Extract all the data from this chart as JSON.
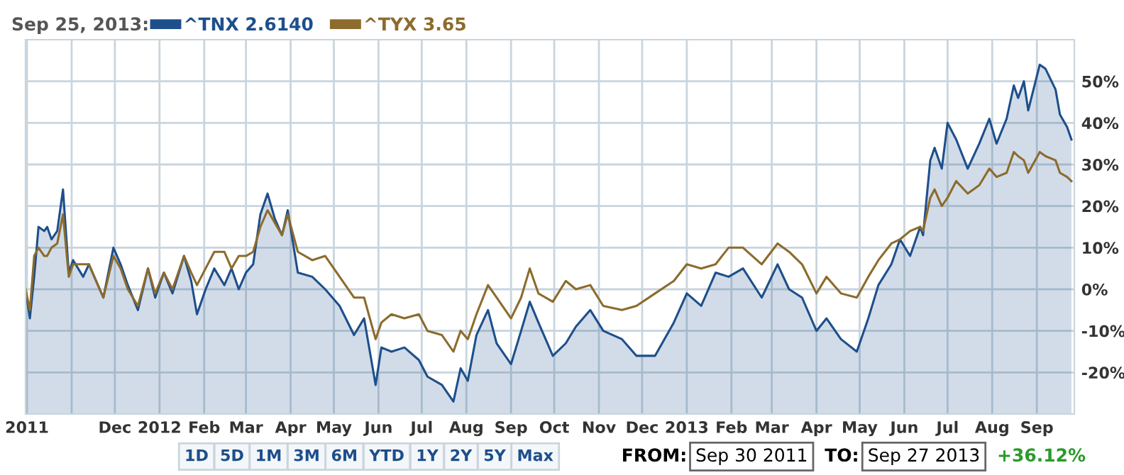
{
  "chart_data": {
    "type": "area",
    "legend_title": "Sep 25, 2013:",
    "x": [
      "2011-09-30",
      "2011-10-03",
      "2011-10-06",
      "2011-10-09",
      "2011-10-13",
      "2011-10-15",
      "2011-10-18",
      "2011-10-22",
      "2011-10-26",
      "2011-10-30",
      "2011-11-02",
      "2011-11-09",
      "2011-11-13",
      "2011-11-23",
      "2011-11-30",
      "2011-12-05",
      "2011-12-10",
      "2011-12-17",
      "2011-12-24",
      "2011-12-29",
      "2012-01-04",
      "2012-01-10",
      "2012-01-18",
      "2012-01-23",
      "2012-01-27",
      "2012-02-02",
      "2012-02-08",
      "2012-02-15",
      "2012-02-20",
      "2012-02-25",
      "2012-03-01",
      "2012-03-06",
      "2012-03-11",
      "2012-03-16",
      "2012-03-21",
      "2012-03-26",
      "2012-03-30",
      "2012-04-06",
      "2012-04-16",
      "2012-04-25",
      "2012-05-05",
      "2012-05-15",
      "2012-05-22",
      "2012-05-30",
      "2012-06-03",
      "2012-06-10",
      "2012-06-19",
      "2012-06-29",
      "2012-07-05",
      "2012-07-15",
      "2012-07-23",
      "2012-07-28",
      "2012-08-02",
      "2012-08-08",
      "2012-08-16",
      "2012-08-22",
      "2012-09-01",
      "2012-09-08",
      "2012-09-14",
      "2012-09-20",
      "2012-09-30",
      "2012-10-09",
      "2012-10-16",
      "2012-10-26",
      "2012-11-04",
      "2012-11-17",
      "2012-11-27",
      "2012-12-10",
      "2012-12-23",
      "2013-01-01",
      "2013-01-11",
      "2013-01-21",
      "2013-01-30",
      "2013-02-09",
      "2013-02-22",
      "2013-03-05",
      "2013-03-13",
      "2013-03-22",
      "2013-04-01",
      "2013-04-08",
      "2013-04-18",
      "2013-04-29",
      "2013-05-07",
      "2013-05-14",
      "2013-05-23",
      "2013-05-29",
      "2013-06-05",
      "2013-06-12",
      "2013-06-14",
      "2013-06-19",
      "2013-06-22",
      "2013-06-27",
      "2013-07-01",
      "2013-07-07",
      "2013-07-15",
      "2013-07-23",
      "2013-07-30",
      "2013-08-04",
      "2013-08-11",
      "2013-08-16",
      "2013-08-19",
      "2013-08-23",
      "2013-08-26",
      "2013-09-03",
      "2013-09-07",
      "2013-09-14",
      "2013-09-17",
      "2013-09-22",
      "2013-09-25"
    ],
    "series": [
      {
        "name": "^TNX 2.6140",
        "color": "#1d4f8b",
        "values": [
          0,
          -7,
          3,
          15,
          14,
          15,
          12,
          14,
          24,
          4,
          7,
          3,
          6,
          -2,
          10,
          6,
          1,
          -5,
          5,
          -2,
          4,
          -1,
          8,
          2,
          -6,
          0,
          5,
          1,
          5,
          0,
          4,
          6,
          18,
          23,
          17,
          13,
          19,
          4,
          3,
          0,
          -4,
          -11,
          -7,
          -23,
          -14,
          -15,
          -14,
          -17,
          -21,
          -23,
          -27,
          -19,
          -22,
          -11,
          -5,
          -13,
          -18,
          -10,
          -3,
          -8,
          -16,
          -13,
          -9,
          -5,
          -10,
          -12,
          -16,
          -16,
          -8,
          -1,
          -4,
          4,
          3,
          5,
          -2,
          6,
          0,
          -2,
          -10,
          -7,
          -12,
          -15,
          -7,
          1,
          6,
          12,
          8,
          15,
          13,
          31,
          34,
          29,
          40,
          36,
          29,
          35,
          41,
          35,
          41,
          49,
          46,
          50,
          43,
          54,
          53,
          48,
          42,
          39,
          36
        ]
      },
      {
        "name": "^TYX 3.65",
        "type": "line",
        "color": "#8c6b2c",
        "values": [
          0,
          -5,
          8,
          10,
          8,
          8,
          10,
          11,
          18,
          3,
          6,
          6,
          6,
          -2,
          8,
          5,
          0,
          -4,
          5,
          -1,
          4,
          0,
          8,
          4,
          1,
          5,
          9,
          9,
          5,
          8,
          8,
          9,
          15,
          19,
          16,
          13,
          18,
          9,
          7,
          8,
          3,
          -2,
          -2,
          -12,
          -8,
          -6,
          -7,
          -6,
          -10,
          -11,
          -15,
          -10,
          -12,
          -6,
          1,
          -2,
          -7,
          -2,
          5,
          -1,
          -3,
          2,
          0,
          1,
          -4,
          -5,
          -4,
          -1,
          2,
          6,
          5,
          6,
          10,
          10,
          6,
          11,
          9,
          6,
          -1,
          3,
          -1,
          -2,
          3,
          7,
          11,
          12,
          14,
          15,
          14,
          22,
          24,
          20,
          22,
          26,
          23,
          25,
          29,
          27,
          28,
          33,
          32,
          31,
          28,
          33,
          32,
          31,
          28,
          27,
          26
        ]
      }
    ],
    "xlim": [
      "2011-09-30",
      "2013-09-27"
    ],
    "xticks": [
      {
        "value": "2011-10-01",
        "label": "2011"
      },
      {
        "value": "2011-11-01",
        "label": null
      },
      {
        "value": "2011-12-01",
        "label": "Dec"
      },
      {
        "value": "2012-01-01",
        "label": "2012"
      },
      {
        "value": "2012-02-01",
        "label": "Feb"
      },
      {
        "value": "2012-03-01",
        "label": "Mar"
      },
      {
        "value": "2012-04-01",
        "label": "Apr"
      },
      {
        "value": "2012-05-01",
        "label": "May"
      },
      {
        "value": "2012-06-01",
        "label": "Jun"
      },
      {
        "value": "2012-07-01",
        "label": "Jul"
      },
      {
        "value": "2012-08-01",
        "label": "Aug"
      },
      {
        "value": "2012-09-01",
        "label": "Sep"
      },
      {
        "value": "2012-10-01",
        "label": "Oct"
      },
      {
        "value": "2012-11-01",
        "label": "Nov"
      },
      {
        "value": "2012-12-01",
        "label": "Dec"
      },
      {
        "value": "2013-01-01",
        "label": "2013"
      },
      {
        "value": "2013-02-01",
        "label": "Feb"
      },
      {
        "value": "2013-03-01",
        "label": "Mar"
      },
      {
        "value": "2013-04-01",
        "label": "Apr"
      },
      {
        "value": "2013-05-01",
        "label": "May"
      },
      {
        "value": "2013-06-01",
        "label": "Jun"
      },
      {
        "value": "2013-07-01",
        "label": "Jul"
      },
      {
        "value": "2013-08-01",
        "label": "Aug"
      },
      {
        "value": "2013-09-01",
        "label": "Sep"
      }
    ],
    "ylim": [
      -30,
      60
    ],
    "yticks": [
      {
        "value": -20,
        "label": "-20%"
      },
      {
        "value": -10,
        "label": "-10%"
      },
      {
        "value": 0,
        "label": "0%"
      },
      {
        "value": 10,
        "label": "10%"
      },
      {
        "value": 20,
        "label": "20%"
      },
      {
        "value": 30,
        "label": "30%"
      },
      {
        "value": 40,
        "label": "40%"
      },
      {
        "value": 50,
        "label": "50%"
      }
    ],
    "grid": true,
    "legend": "top left",
    "annotations": [
      "1D",
      "5D",
      "1M",
      "3M",
      "6M",
      "YTD",
      "1Y",
      "2Y",
      "5Y",
      "Max",
      "FROM:",
      "Sep 30 2011",
      "TO:",
      "Sep 27 2013",
      "+36.12%"
    ]
  }
}
